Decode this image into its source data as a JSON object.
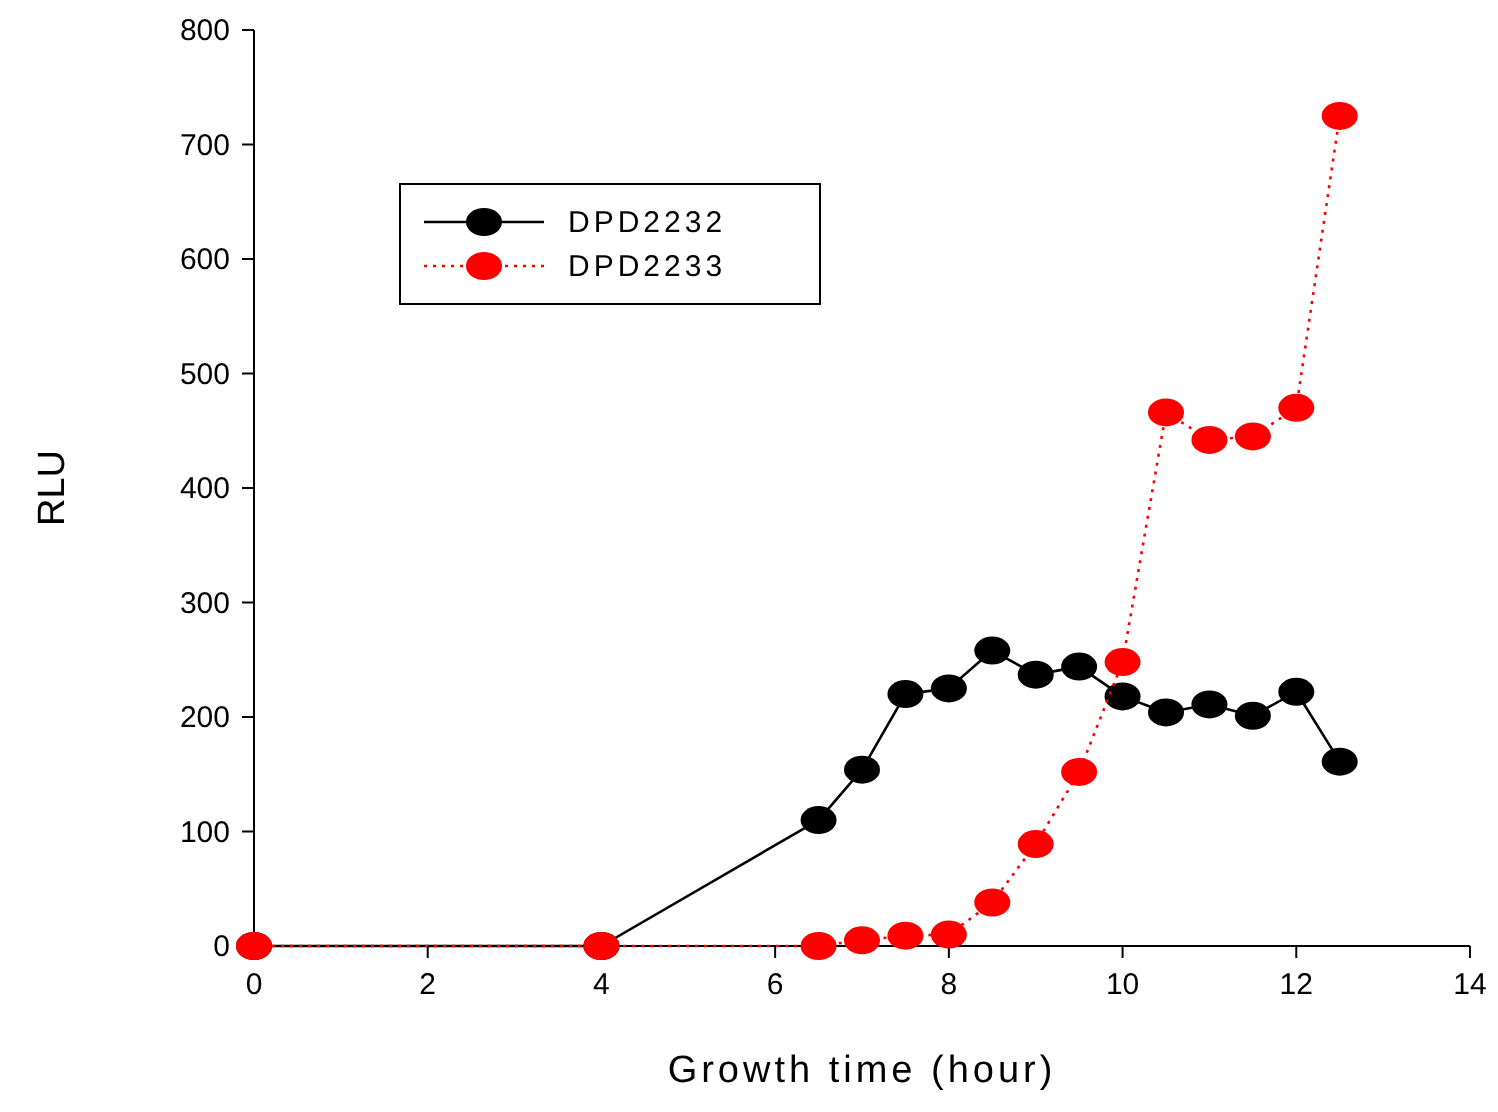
{
  "chart_data": {
    "type": "line",
    "xlabel": "Growth time (hour)",
    "ylabel": "RLU",
    "xlim": [
      0,
      14
    ],
    "ylim": [
      0,
      800
    ],
    "xticks": [
      0,
      2,
      4,
      6,
      8,
      10,
      12,
      14
    ],
    "yticks": [
      0,
      100,
      200,
      300,
      400,
      500,
      600,
      700,
      800
    ],
    "grid": false,
    "legend": "top left",
    "marker": "circle",
    "series": [
      {
        "name": "DPD2232",
        "color": "#000000",
        "line_style": "solid",
        "x": [
          0,
          4,
          6.5,
          7,
          7.5,
          8,
          8.5,
          9,
          9.5,
          10,
          10.5,
          11,
          11.5,
          12,
          12.5
        ],
        "values": [
          0,
          0,
          110,
          154,
          220,
          225,
          258,
          237,
          244,
          218,
          204,
          211,
          201,
          222,
          161
        ]
      },
      {
        "name": "DPD2233",
        "color": "#ff0000",
        "line_style": "dotted",
        "x": [
          0,
          4,
          6.5,
          7,
          7.5,
          8,
          8.5,
          9,
          9.5,
          10,
          10.5,
          11,
          11.5,
          12,
          12.5
        ],
        "values": [
          0,
          0,
          0,
          5,
          9,
          10,
          38,
          89,
          152,
          248,
          466,
          442,
          445,
          470,
          725
        ]
      }
    ]
  }
}
